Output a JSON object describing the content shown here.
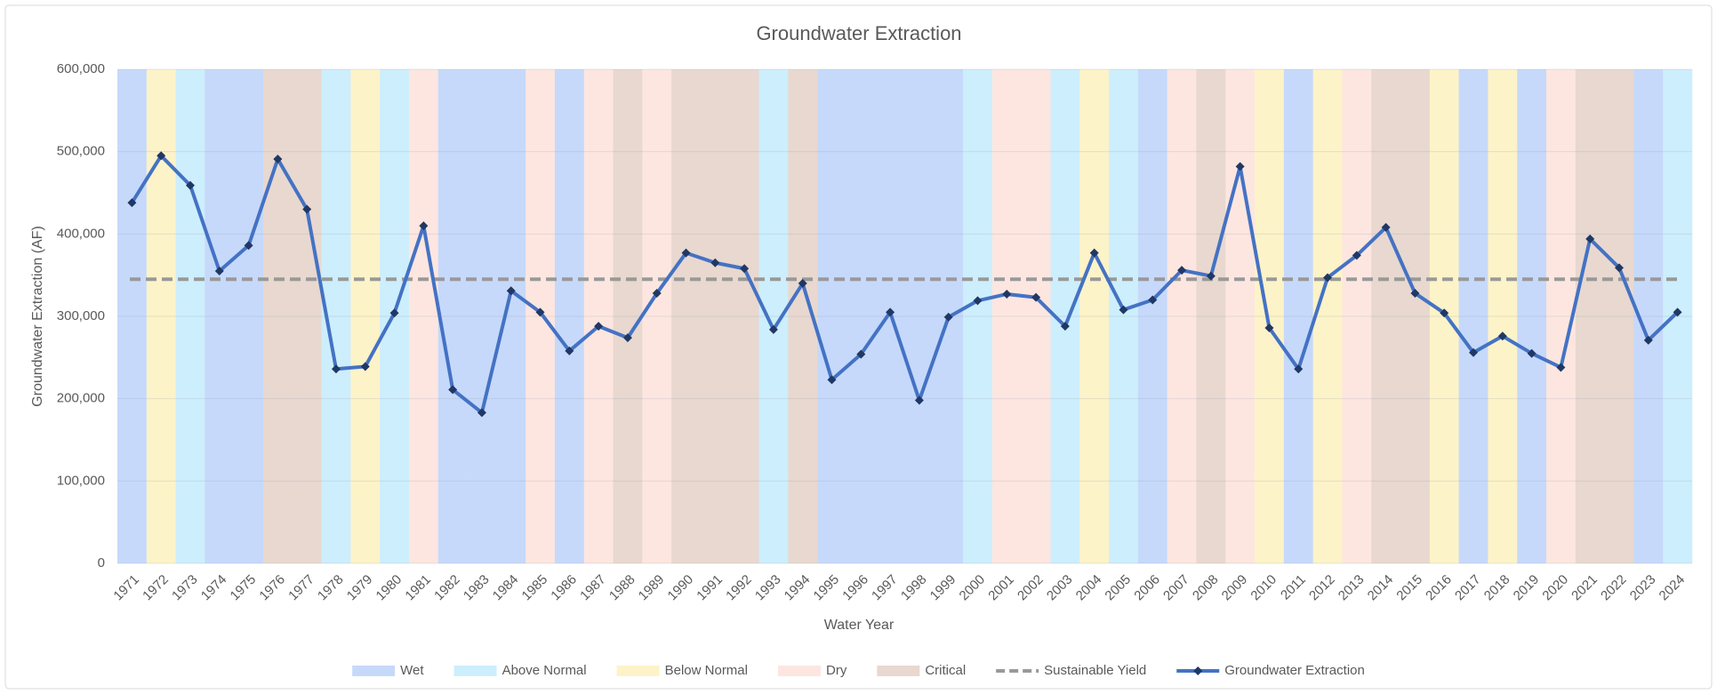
{
  "chart_data": {
    "type": "line",
    "title": "Groundwater Extraction",
    "x_label": "Water Year",
    "y_label": "Groundwater Extraction (AF)",
    "categories": [
      "1971",
      "1972",
      "1973",
      "1974",
      "1975",
      "1976",
      "1977",
      "1978",
      "1979",
      "1980",
      "1981",
      "1982",
      "1983",
      "1984",
      "1985",
      "1986",
      "1987",
      "1988",
      "1989",
      "1990",
      "1991",
      "1992",
      "1993",
      "1994",
      "1995",
      "1996",
      "1997",
      "1998",
      "1999",
      "2000",
      "2001",
      "2002",
      "2003",
      "2004",
      "2005",
      "2006",
      "2007",
      "2008",
      "2009",
      "2010",
      "2011",
      "2012",
      "2013",
      "2014",
      "2015",
      "2016",
      "2017",
      "2018",
      "2019",
      "2020",
      "2021",
      "2022",
      "2023",
      "2024"
    ],
    "year_types": [
      "Wet",
      "Below Normal",
      "Above Normal",
      "Wet",
      "Wet",
      "Critical",
      "Critical",
      "Above Normal",
      "Below Normal",
      "Above Normal",
      "Dry",
      "Wet",
      "Wet",
      "Wet",
      "Dry",
      "Wet",
      "Dry",
      "Critical",
      "Dry",
      "Critical",
      "Critical",
      "Critical",
      "Above Normal",
      "Critical",
      "Wet",
      "Wet",
      "Wet",
      "Wet",
      "Wet",
      "Above Normal",
      "Dry",
      "Dry",
      "Above Normal",
      "Below Normal",
      "Above Normal",
      "Wet",
      "Dry",
      "Critical",
      "Dry",
      "Below Normal",
      "Wet",
      "Below Normal",
      "Dry",
      "Critical",
      "Critical",
      "Below Normal",
      "Wet",
      "Below Normal",
      "Wet",
      "Dry",
      "Critical",
      "Critical",
      "Wet",
      "Above Normal"
    ],
    "year_type_legend": [
      {
        "name": "Wet",
        "color": "#c6d9fa"
      },
      {
        "name": "Above Normal",
        "color": "#cdeefc"
      },
      {
        "name": "Below Normal",
        "color": "#fdf3c8"
      },
      {
        "name": "Dry",
        "color": "#fde6e0"
      },
      {
        "name": "Critical",
        "color": "#e8d8cf"
      }
    ],
    "sustainable_yield": {
      "name": "Sustainable Yield",
      "color": "#999999",
      "value": 345000
    },
    "series": [
      {
        "name": "Groundwater Extraction",
        "color": "#4472c4",
        "marker_color": "#203864",
        "values": [
          438000,
          495000,
          459000,
          355000,
          386000,
          491000,
          430000,
          236000,
          239000,
          304000,
          410000,
          211000,
          183000,
          331000,
          305000,
          258000,
          288000,
          274000,
          328000,
          377000,
          365000,
          358000,
          284000,
          340000,
          223000,
          254000,
          305000,
          198000,
          299000,
          319000,
          327000,
          323000,
          288000,
          377000,
          308000,
          320000,
          356000,
          349000,
          482000,
          286000,
          236000,
          347000,
          374000,
          408000,
          328000,
          304000,
          256000,
          276000,
          255000,
          238000,
          394000,
          359000,
          271000,
          305000
        ]
      }
    ],
    "ylim": [
      0,
      600000
    ],
    "yticks": [
      0,
      {
        "value": 100000,
        "label": "100,000"
      },
      {
        "value": 200000,
        "label": "200,000"
      },
      {
        "value": 300000,
        "label": "300,000"
      },
      {
        "value": 400000,
        "label": "400,000"
      },
      {
        "value": 500000,
        "label": "500,000"
      },
      {
        "value": 600000,
        "label": "600,000"
      }
    ],
    "grid": true
  }
}
